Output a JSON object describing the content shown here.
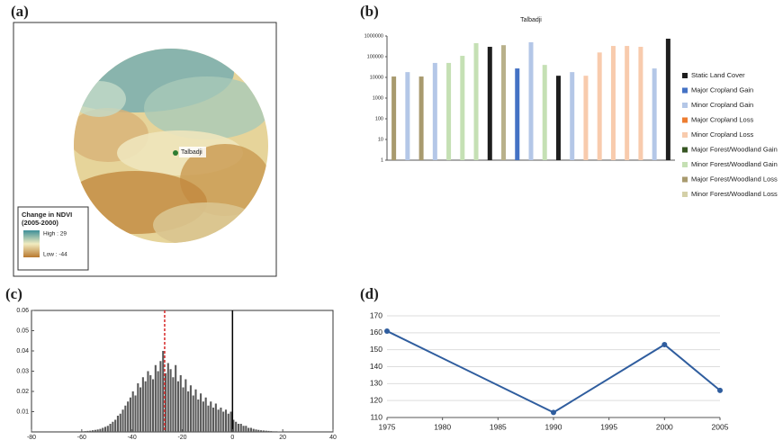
{
  "chart_data": [
    {
      "type": "map",
      "label": "(a)",
      "place": "Talbadji",
      "legend_title": [
        "Change in NDVI",
        "(2005-2000)"
      ],
      "legend_high": "High : 29",
      "legend_low": "Low : -44"
    },
    {
      "type": "bar",
      "label": "(b)",
      "title": "Talbadji",
      "categories": [
        null,
        null,
        null,
        null,
        null,
        null,
        null,
        null,
        null,
        null,
        null,
        null,
        null,
        null,
        null,
        null,
        null,
        null,
        null,
        null,
        null
      ],
      "values": [
        11000,
        18000,
        11000,
        50000,
        50000,
        110000,
        450000,
        300000,
        360000,
        27000,
        500000,
        40000,
        12000,
        18000,
        12000,
        160000,
        330000,
        330000,
        300000,
        27000,
        740000
      ],
      "colors": [
        "#a89a6e",
        "#b4c7e7",
        "#a89a6e",
        "#b4c7e7",
        "#c5e0b4",
        "#c5e0b4",
        "#c5e0b4",
        "#1e1e1e",
        "#b8b08a",
        "#4472c4",
        "#b4c7e7",
        "#c5e0b4",
        "#1e1e1e",
        "#b4c7e7",
        "#f8cbad",
        "#f8cbad",
        "#f8cbad",
        "#f8cbad",
        "#f8cbad",
        "#b4c7e7",
        "#1e1e1e"
      ],
      "log_scale": true,
      "ylim": [
        1,
        1000000
      ],
      "yticks": [
        1,
        10,
        100,
        1000,
        10000,
        100000,
        1000000
      ],
      "legend": [
        {
          "name": "Static Land Cover",
          "color": "#1e1e1e"
        },
        {
          "name": "Major Cropland Gain",
          "color": "#4472c4"
        },
        {
          "name": "Minor Cropland Gain",
          "color": "#b4c7e7"
        },
        {
          "name": "Major Cropland Loss",
          "color": "#ed7d31"
        },
        {
          "name": "Minor Cropland Loss",
          "color": "#f8cbad"
        },
        {
          "name": "Major Forest/Woodland Gain",
          "color": "#375623"
        },
        {
          "name": "Minor Forest/Woodland Gain",
          "color": "#c5e0b4"
        },
        {
          "name": "Major Forest/Woodland Loss",
          "color": "#a89a6e"
        },
        {
          "name": "Minor Forest/Woodland Loss",
          "color": "#d4d0a8"
        }
      ]
    },
    {
      "type": "histogram",
      "label": "(c)",
      "bins": [
        -60,
        -59,
        -58,
        -57,
        -56,
        -55,
        -54,
        -53,
        -52,
        -51,
        -50,
        -49,
        -48,
        -47,
        -46,
        -45,
        -44,
        -43,
        -42,
        -41,
        -40,
        -39,
        -38,
        -37,
        -36,
        -35,
        -34,
        -33,
        -32,
        -31,
        -30,
        -29,
        -28,
        -27,
        -26,
        -25,
        -24,
        -23,
        -22,
        -21,
        -20,
        -19,
        -18,
        -17,
        -16,
        -15,
        -14,
        -13,
        -12,
        -11,
        -10,
        -9,
        -8,
        -7,
        -6,
        -5,
        -4,
        -3,
        -2,
        -1,
        0,
        1,
        2,
        3,
        4,
        5,
        6,
        7,
        8,
        9,
        10,
        11,
        12,
        13,
        14,
        15,
        16,
        17,
        18,
        19,
        20
      ],
      "counts": [
        0.0003,
        0.0004,
        0.0005,
        0.0006,
        0.0008,
        0.001,
        0.0012,
        0.0015,
        0.002,
        0.0025,
        0.003,
        0.004,
        0.005,
        0.006,
        0.008,
        0.009,
        0.011,
        0.013,
        0.015,
        0.017,
        0.02,
        0.018,
        0.024,
        0.022,
        0.027,
        0.025,
        0.03,
        0.028,
        0.026,
        0.033,
        0.03,
        0.035,
        0.04,
        0.029,
        0.034,
        0.031,
        0.027,
        0.033,
        0.025,
        0.028,
        0.022,
        0.026,
        0.02,
        0.023,
        0.018,
        0.021,
        0.016,
        0.019,
        0.015,
        0.017,
        0.013,
        0.015,
        0.012,
        0.014,
        0.011,
        0.012,
        0.01,
        0.011,
        0.009,
        0.01,
        0.006,
        0.005,
        0.004,
        0.004,
        0.003,
        0.003,
        0.002,
        0.002,
        0.0015,
        0.0012,
        0.001,
        0.0008,
        0.0007,
        0.0006,
        0.0005,
        0.0004,
        0.0003,
        0.0003,
        0.0002,
        0.0002
      ],
      "color": "#5a5a5a",
      "xlim": [
        -80,
        40
      ],
      "xticks": [
        -80,
        -60,
        -40,
        -20,
        0,
        20,
        40
      ],
      "ylim": [
        0,
        0.06
      ],
      "yticks": [
        0.01,
        0.02,
        0.03,
        0.04,
        0.05,
        0.06
      ],
      "reference_lines": [
        {
          "x": 0,
          "color": "#000000",
          "dashed": false
        },
        {
          "x": -27,
          "color": "#d62728",
          "dashed": true
        }
      ]
    },
    {
      "type": "line",
      "label": "(d)",
      "x": [
        1975,
        1990,
        2000,
        2005
      ],
      "values": [
        161,
        113,
        153,
        126
      ],
      "color": "#2f5d9e",
      "xlim": [
        1975,
        2005
      ],
      "xticks": [
        1975,
        1980,
        1985,
        1990,
        1995,
        2000,
        2005
      ],
      "ylim": [
        110,
        170
      ],
      "yticks": [
        110,
        120,
        130,
        140,
        150,
        160,
        170
      ],
      "grid": true
    }
  ]
}
